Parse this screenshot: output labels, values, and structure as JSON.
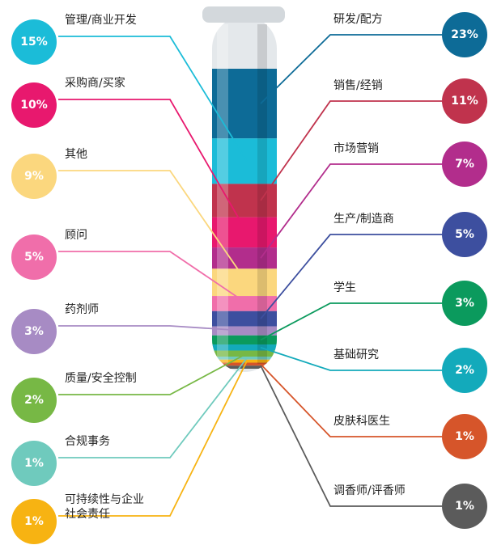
{
  "chart_data": {
    "type": "tube",
    "categories": [
      "研发/配方",
      "管理/商业开发",
      "销售/经销",
      "采购商/买家",
      "市场营销",
      "其他",
      "顾问",
      "生产/制造商",
      "药剂师",
      "学生",
      "基础研究",
      "质量/安全控制",
      "合规事务",
      "可持续性与企业\n社会责任",
      "皮肤科医生",
      "调香师/评香师"
    ],
    "values": [
      23,
      15,
      11,
      10,
      7,
      9,
      5,
      5,
      3,
      3,
      2,
      2,
      1,
      1,
      1,
      1
    ],
    "value_labels": [
      "23%",
      "15%",
      "11%",
      "10%",
      "7%",
      "9%",
      "5%",
      "5%",
      "3%",
      "3%",
      "2%",
      "2%",
      "1%",
      "1%",
      "1%",
      "1%"
    ],
    "colors": [
      "#0d6b97",
      "#1bbcd8",
      "#c0334d",
      "#e8186e",
      "#b22d8c",
      "#fbd77e",
      "#f06eaa",
      "#3d4f9f",
      "#a78bc4",
      "#0b9a5d",
      "#13aabb",
      "#77b845",
      "#6fcabd",
      "#f7b312",
      "#d6552a",
      "#5b5b5b"
    ]
  }
}
